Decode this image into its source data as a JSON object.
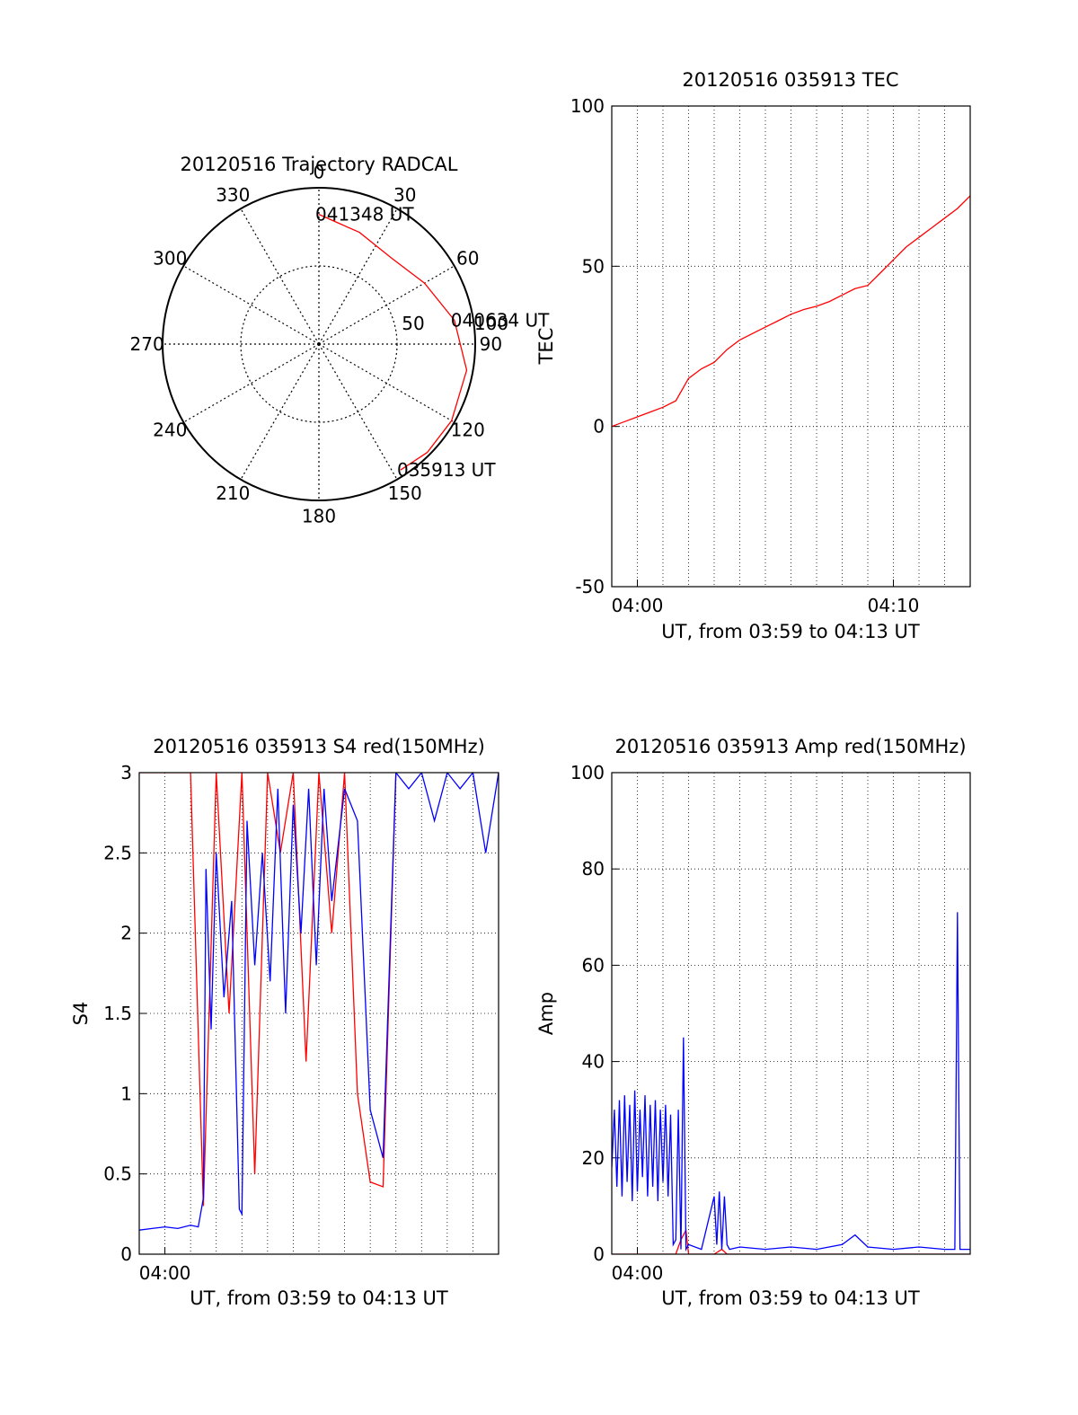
{
  "colors": {
    "red": "#ff0000",
    "blue": "#0000ff",
    "grid": "#000000"
  },
  "chart_data": [
    {
      "type": "polar",
      "title": "20120516 Trajectory RADCAL",
      "azimuth_labels": [
        "0",
        "30",
        "60",
        "90",
        "120",
        "150",
        "180",
        "210",
        "240",
        "270",
        "300",
        "330"
      ],
      "radial_labels": [
        "50",
        "100"
      ],
      "rlim": [
        0,
        100
      ],
      "grid": true,
      "series": [
        {
          "color": "red",
          "points": [
            {
              "az": 0,
              "r": 83
            },
            {
              "az": 20,
              "r": 76
            },
            {
              "az": 40,
              "r": 72
            },
            {
              "az": 60,
              "r": 78
            },
            {
              "az": 80,
              "r": 88
            },
            {
              "az": 100,
              "r": 96
            },
            {
              "az": 120,
              "r": 98
            },
            {
              "az": 135,
              "r": 98
            },
            {
              "az": 147,
              "r": 96
            }
          ]
        }
      ],
      "annotations": [
        {
          "text": "041348 UT",
          "az": 0,
          "r": 83
        },
        {
          "text": "040634 UT",
          "az": 80,
          "r": 88
        },
        {
          "text": "035913 UT",
          "az": 147,
          "r": 96
        }
      ]
    },
    {
      "type": "line",
      "title": "20120516 035913 TEC",
      "xlabel": "UT, from 03:59 to 04:13 UT",
      "ylabel": "TEC",
      "xlim": [
        0,
        14
      ],
      "ylim": [
        -50,
        100
      ],
      "yticks": [
        "-50",
        "0",
        "50",
        "100"
      ],
      "xticks": [
        {
          "x": 1,
          "label": "04:00"
        },
        {
          "x": 11,
          "label": "04:10"
        }
      ],
      "grid": true,
      "series": [
        {
          "color": "red",
          "x": [
            0,
            0.5,
            1,
            1.5,
            2,
            2.5,
            3,
            3.5,
            4,
            4.5,
            5,
            5.5,
            6,
            6.5,
            7,
            7.5,
            8,
            8.5,
            9,
            9.5,
            10,
            10.5,
            11,
            11.5,
            12,
            12.5,
            13,
            13.5,
            14
          ],
          "y": [
            0,
            1.5,
            3,
            4.5,
            6,
            8,
            15,
            18,
            20,
            24,
            27,
            29,
            31,
            33,
            35,
            36.5,
            37.5,
            39,
            41,
            43,
            44,
            48,
            52,
            56,
            59,
            62,
            65,
            68,
            72
          ]
        }
      ]
    },
    {
      "type": "line",
      "title": "20120516 035913 S4 red(150MHz)",
      "xlabel": "UT, from 03:59 to 04:13 UT",
      "ylabel": "S4",
      "xlim": [
        0,
        14
      ],
      "ylim": [
        0,
        3
      ],
      "yticks": [
        "0",
        "0.5",
        "1",
        "1.5",
        "2",
        "2.5",
        "3"
      ],
      "xticks": [
        {
          "x": 1,
          "label": "04:00"
        }
      ],
      "grid": true,
      "series": [
        {
          "color": "blue",
          "x": [
            0,
            0.5,
            1,
            1.5,
            2,
            2.3,
            2.5,
            2.6,
            2.8,
            3,
            3.3,
            3.6,
            3.9,
            4.0,
            4.2,
            4.5,
            4.8,
            5.1,
            5.4,
            5.7,
            6,
            6.3,
            6.6,
            6.9,
            7.2,
            7.5,
            8,
            8.5,
            9,
            9.5,
            10,
            10.5,
            11,
            11.5,
            12,
            12.5,
            13,
            13.5,
            14
          ],
          "y": [
            0.15,
            0.16,
            0.17,
            0.16,
            0.18,
            0.17,
            0.35,
            2.4,
            1.4,
            2.5,
            1.6,
            2.2,
            0.28,
            0.25,
            2.7,
            1.8,
            2.5,
            1.7,
            2.9,
            1.5,
            2.8,
            2.0,
            2.9,
            1.8,
            2.9,
            2.2,
            2.9,
            2.7,
            0.9,
            0.6,
            3.0,
            2.9,
            3.0,
            2.7,
            3.0,
            2.9,
            3.0,
            2.5,
            3.0
          ]
        },
        {
          "color": "red",
          "x": [
            0,
            1,
            2,
            2.5,
            3,
            3.5,
            4,
            4.5,
            5,
            5.5,
            6,
            6.5,
            7,
            7.5,
            8,
            8.5,
            9,
            9.5,
            10
          ],
          "y": [
            3.0,
            3.0,
            3.0,
            0.3,
            3.0,
            1.5,
            3.0,
            0.5,
            3.0,
            2.5,
            3.0,
            1.2,
            3.0,
            2.0,
            3.0,
            1.0,
            0.45,
            0.42,
            3.0
          ]
        }
      ]
    },
    {
      "type": "line",
      "title": "20120516 035913 Amp red(150MHz)",
      "xlabel": "UT, from 03:59 to 04:13 UT",
      "ylabel": "Amp",
      "xlim": [
        0,
        14
      ],
      "ylim": [
        0,
        100
      ],
      "yticks": [
        "0",
        "20",
        "40",
        "60",
        "80",
        "100"
      ],
      "xticks": [
        {
          "x": 1,
          "label": "04:00"
        }
      ],
      "grid": true,
      "series": [
        {
          "color": "blue",
          "x": [
            0,
            0.1,
            0.2,
            0.3,
            0.4,
            0.5,
            0.6,
            0.7,
            0.8,
            0.9,
            1.0,
            1.1,
            1.2,
            1.3,
            1.4,
            1.5,
            1.6,
            1.7,
            1.8,
            1.9,
            2.0,
            2.1,
            2.2,
            2.3,
            2.4,
            2.5,
            2.6,
            2.7,
            2.8,
            2.9,
            3.0,
            3.5,
            4.0,
            4.1,
            4.2,
            4.3,
            4.4,
            4.5,
            4.6,
            5,
            6,
            7,
            8,
            9,
            9.5,
            10,
            11,
            12,
            13,
            13.4,
            13.5,
            13.6,
            14
          ],
          "y": [
            18,
            30,
            14,
            32,
            12,
            33,
            15,
            31,
            11,
            34,
            13,
            30,
            16,
            33,
            12,
            31,
            14,
            32,
            11,
            30,
            15,
            31,
            12,
            29,
            2,
            3,
            30,
            1,
            45,
            1,
            2,
            1,
            12,
            2,
            13,
            1,
            12,
            2,
            1,
            1.5,
            1,
            1.5,
            1,
            2,
            4,
            1.5,
            1,
            1.5,
            1,
            1,
            71,
            1,
            1
          ]
        },
        {
          "color": "red",
          "x": [
            0,
            1,
            2,
            2.5,
            2.7,
            2.9,
            3.0,
            4,
            4.3,
            4.5,
            5,
            6,
            8,
            10,
            12,
            14
          ],
          "y": [
            0,
            0,
            0,
            0,
            3,
            5,
            0,
            0,
            1,
            0,
            0,
            0,
            0,
            0,
            0,
            0
          ]
        }
      ]
    }
  ]
}
